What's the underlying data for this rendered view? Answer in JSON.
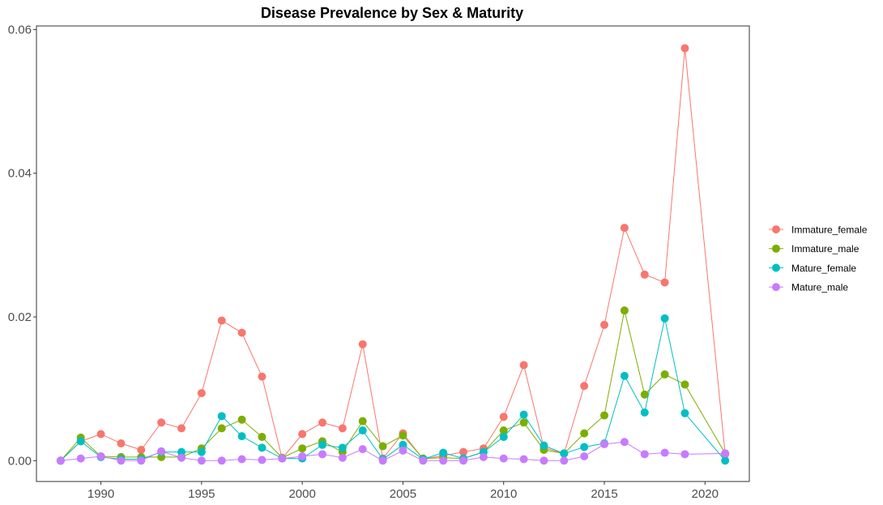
{
  "chart_data": {
    "type": "line",
    "title": "Disease Prevalence by Sex & Maturity",
    "xlabel": "",
    "ylabel": "",
    "xlim": [
      1986.8,
      2022.2
    ],
    "ylim": [
      -0.0029,
      0.0605
    ],
    "x_ticks": [
      1990,
      1995,
      2000,
      2005,
      2010,
      2015,
      2020
    ],
    "y_ticks": [
      0.0,
      0.02,
      0.04,
      0.06
    ],
    "y_tick_labels": [
      "0.00",
      "0.02",
      "0.04",
      "0.06"
    ],
    "grid": false,
    "legend_position": "right",
    "x": [
      1988,
      1989,
      1990,
      1991,
      1992,
      1993,
      1994,
      1995,
      1996,
      1997,
      1998,
      1999,
      2000,
      2001,
      2002,
      2003,
      2004,
      2005,
      2006,
      2007,
      2008,
      2009,
      2010,
      2011,
      2012,
      2013,
      2014,
      2015,
      2016,
      2017,
      2018,
      2019,
      2021
    ],
    "series": [
      {
        "name": "Immature_female",
        "color": "#F8766D",
        "values": [
          0.0,
          0.0027,
          0.0037,
          0.0024,
          0.0015,
          0.0053,
          0.0045,
          0.0094,
          0.0195,
          0.0178,
          0.0117,
          0.0003,
          0.0037,
          0.0053,
          0.0045,
          0.0162,
          0.0003,
          0.0038,
          0.0002,
          0.0007,
          0.0012,
          0.0017,
          0.0061,
          0.0133,
          0.0018,
          0.001,
          0.0104,
          0.0189,
          0.0324,
          0.0259,
          0.0248,
          0.0574,
          0.0009
        ]
      },
      {
        "name": "Immature_male",
        "color": "#7CAE00",
        "values": [
          0.0,
          0.0032,
          0.0006,
          0.0005,
          0.0005,
          0.0005,
          0.0005,
          0.0017,
          0.0045,
          0.0057,
          0.0033,
          0.0004,
          0.0017,
          0.0027,
          0.0012,
          0.0055,
          0.002,
          0.0035,
          0.0003,
          0.0004,
          0.0003,
          0.0012,
          0.0042,
          0.0053,
          0.0015,
          0.001,
          0.0038,
          0.0063,
          0.0209,
          0.0092,
          0.012,
          0.0106,
          0.001
        ]
      },
      {
        "name": "Mature_female",
        "color": "#00BFC4",
        "values": [
          0.0,
          0.0027,
          0.0005,
          0.0002,
          0.0002,
          0.0012,
          0.0012,
          0.0012,
          0.0062,
          0.0034,
          0.0018,
          0.0003,
          0.0003,
          0.0022,
          0.0018,
          0.0042,
          0.0002,
          0.0022,
          0.0002,
          0.0011,
          0.0003,
          0.0012,
          0.0033,
          0.0064,
          0.0021,
          0.001,
          0.0019,
          0.0024,
          0.0118,
          0.0067,
          0.0198,
          0.0066,
          0.0
        ]
      },
      {
        "name": "Mature_male",
        "color": "#C77CFF",
        "values": [
          0.0,
          0.0003,
          0.0006,
          0.0,
          0.0,
          0.0013,
          0.0004,
          0.0,
          0.0,
          0.0002,
          0.0001,
          0.0003,
          0.0006,
          0.0009,
          0.0004,
          0.0016,
          0.0,
          0.0014,
          0.0,
          0.0,
          0.0,
          0.0005,
          0.0003,
          0.0002,
          0.0,
          0.0,
          0.0006,
          0.0023,
          0.0026,
          0.0009,
          0.0011,
          0.0009,
          0.001
        ]
      }
    ]
  }
}
